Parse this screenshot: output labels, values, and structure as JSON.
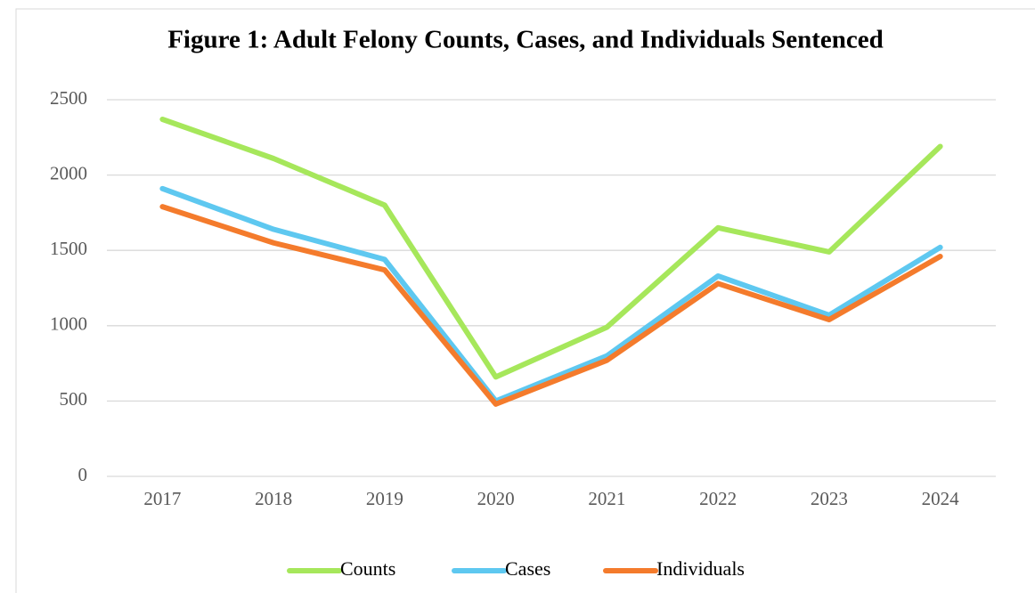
{
  "chart_data": {
    "type": "line",
    "title": "Figure 1: Adult Felony Counts, Cases, and Individuals Sentenced",
    "categories": [
      "2017",
      "2018",
      "2019",
      "2020",
      "2021",
      "2022",
      "2023",
      "2024"
    ],
    "series": [
      {
        "name": "Counts",
        "color": "#a6e75b",
        "values": [
          2370,
          2110,
          1800,
          660,
          990,
          1650,
          1490,
          2190
        ]
      },
      {
        "name": "Cases",
        "color": "#5ec8f0",
        "values": [
          1910,
          1640,
          1440,
          500,
          800,
          1330,
          1070,
          1520
        ]
      },
      {
        "name": "Individuals",
        "color": "#f47b2c",
        "values": [
          1790,
          1550,
          1370,
          480,
          770,
          1280,
          1040,
          1460
        ]
      }
    ],
    "ylim": [
      0,
      2500
    ],
    "yticks": [
      0,
      500,
      1000,
      1500,
      2000,
      2500
    ],
    "grid": true,
    "legend": "bottom"
  }
}
